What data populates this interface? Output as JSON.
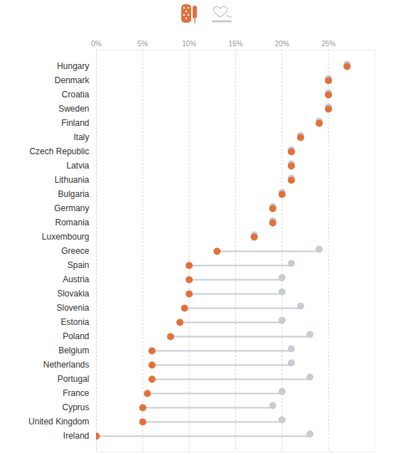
{
  "chart_data": {
    "type": "dumbbell",
    "categories": [
      "Hungary",
      "Denmark",
      "Croatia",
      "Sweden",
      "Finland",
      "Italy",
      "Czech Republic",
      "Latvia",
      "Lithuania",
      "Bulgaria",
      "Germany",
      "Romania",
      "Luxembourg",
      "Greece",
      "Spain",
      "Austria",
      "Slovakia",
      "Slovenia",
      "Estonia",
      "Poland",
      "Belgium",
      "Netherlands",
      "Portugal",
      "France",
      "Cyprus",
      "United Kingdom",
      "Ireland"
    ],
    "series": [
      {
        "color": "#c8ccd3",
        "marker": "circle",
        "values": [
          27,
          25,
          25,
          25,
          24,
          22,
          21,
          21,
          21,
          20,
          19,
          19,
          17,
          24,
          21,
          20,
          20,
          22,
          20,
          23,
          21,
          21,
          23,
          20,
          19,
          20,
          23
        ]
      },
      {
        "color": "#e2703a",
        "marker": "circle",
        "values": [
          27,
          25,
          25,
          25,
          24,
          22,
          21,
          21,
          21,
          20,
          19,
          19,
          17,
          13,
          10,
          10,
          10,
          9.5,
          9,
          8,
          6,
          6,
          6,
          5.5,
          5,
          5,
          0
        ]
      }
    ],
    "xlim": [
      0,
      30
    ],
    "xticks": [
      {
        "value": 0,
        "label": "0%"
      },
      {
        "value": 5,
        "label": "5%"
      },
      {
        "value": 10,
        "label": "10%"
      },
      {
        "value": 15,
        "label": "15%"
      },
      {
        "value": 20,
        "label": "20%"
      },
      {
        "value": 25,
        "label": "25%"
      }
    ],
    "grid": true
  }
}
